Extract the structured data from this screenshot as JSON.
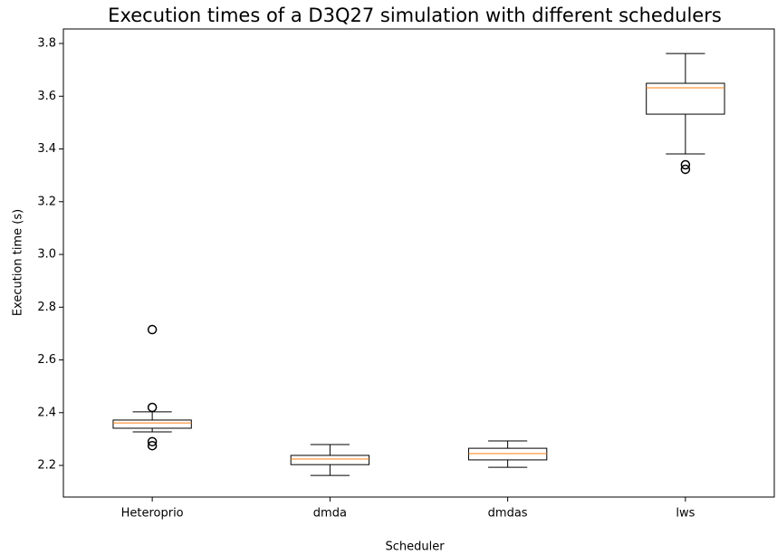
{
  "chart_data": {
    "type": "box",
    "title": "Execution times of a D3Q27 simulation with different schedulers",
    "x_label": "Scheduler",
    "y_label": "Execution time (s)",
    "categories": [
      "Heteroprio",
      "dmda",
      "dmdas",
      "lws"
    ],
    "boxes": [
      {
        "whislo": 2.327,
        "q1": 2.341,
        "med": 2.361,
        "q3": 2.372,
        "whishi": 2.403,
        "fliers": [
          2.715,
          2.42,
          2.29,
          2.275
        ]
      },
      {
        "whislo": 2.162,
        "q1": 2.203,
        "med": 2.224,
        "q3": 2.238,
        "whishi": 2.279,
        "fliers": []
      },
      {
        "whislo": 2.193,
        "q1": 2.221,
        "med": 2.245,
        "q3": 2.265,
        "whishi": 2.293,
        "fliers": []
      },
      {
        "whislo": 3.381,
        "q1": 3.532,
        "med": 3.632,
        "q3": 3.649,
        "whishi": 3.762,
        "fliers": [
          3.34,
          3.323
        ]
      }
    ],
    "box_color": "#000000",
    "median_color": "#ff7f0e",
    "ylim": [
      2.08,
      3.855
    ],
    "yticks": [
      {
        "value": 2.2,
        "label": "2.2"
      },
      {
        "value": 2.4,
        "label": "2.4"
      },
      {
        "value": 2.6,
        "label": "2.6"
      },
      {
        "value": 2.8,
        "label": "2.8"
      },
      {
        "value": 3.0,
        "label": "3.0"
      },
      {
        "value": 3.2,
        "label": "3.2"
      },
      {
        "value": 3.4,
        "label": "3.4"
      },
      {
        "value": 3.6,
        "label": "3.6"
      },
      {
        "value": 3.8,
        "label": "3.8"
      }
    ]
  }
}
